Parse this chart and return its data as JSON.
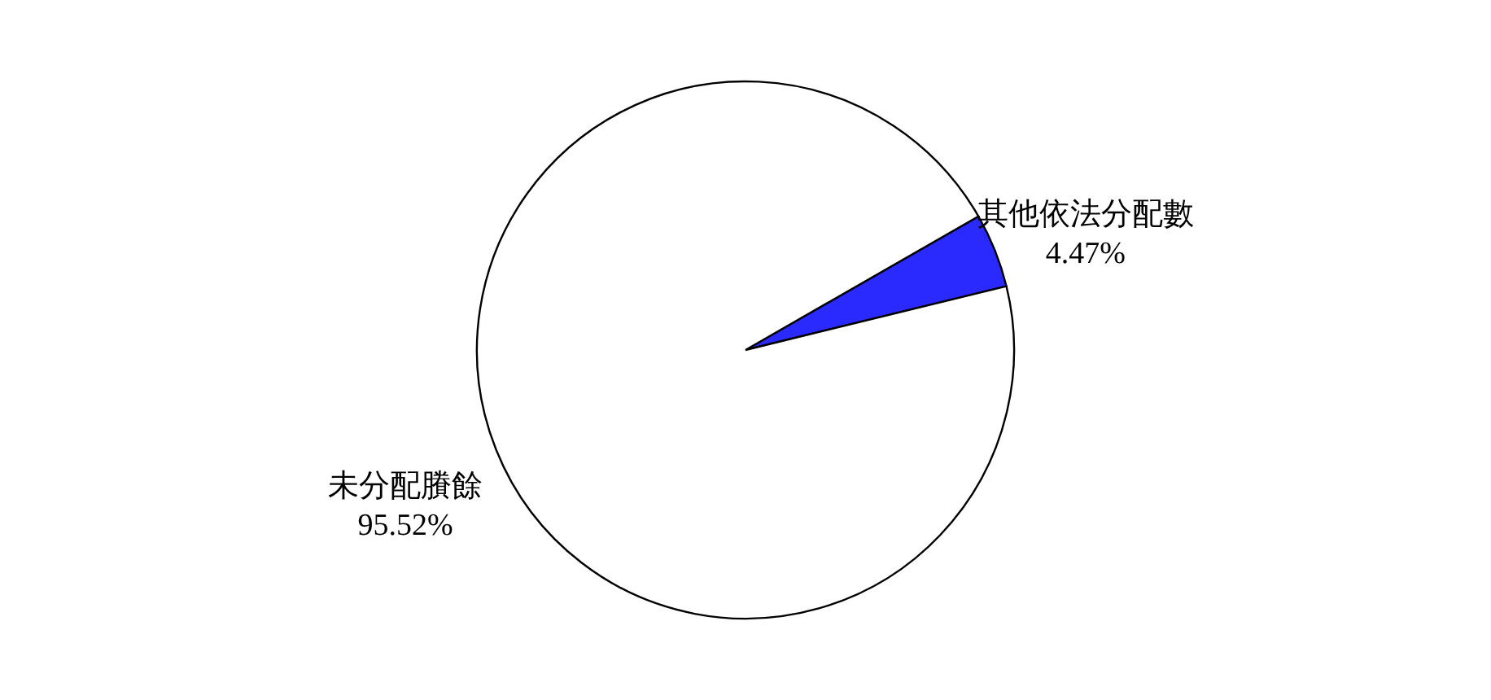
{
  "chart_data": {
    "type": "pie",
    "categories": [
      "其他依法分配數",
      "未分配賸餘"
    ],
    "values": [
      4.47,
      95.52
    ],
    "value_labels": [
      "4.47%",
      "95.52%"
    ],
    "colors": [
      "#2a2aff",
      "#ffffff"
    ]
  }
}
